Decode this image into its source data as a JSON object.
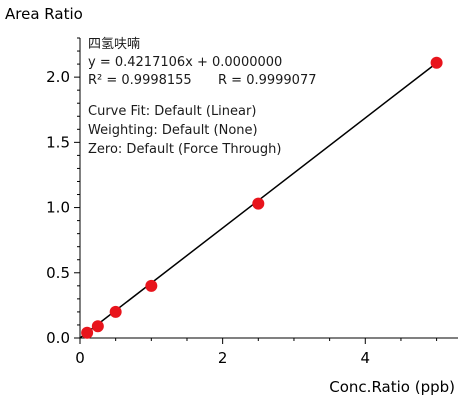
{
  "chart_data": {
    "type": "scatter",
    "title": "",
    "ylabel": "Area Ratio",
    "xlabel": "Conc.Ratio (ppb)",
    "xlim": [
      0,
      5.3
    ],
    "ylim": [
      0,
      2.3
    ],
    "x_ticks": [
      0,
      2,
      4
    ],
    "y_ticks": [
      0.0,
      0.5,
      1.0,
      1.5,
      2.0
    ],
    "grid": false,
    "points": [
      {
        "x": 0.1,
        "y": 0.04
      },
      {
        "x": 0.25,
        "y": 0.09
      },
      {
        "x": 0.5,
        "y": 0.2
      },
      {
        "x": 1.0,
        "y": 0.4
      },
      {
        "x": 2.5,
        "y": 1.03
      },
      {
        "x": 5.0,
        "y": 2.11
      }
    ],
    "fit_line": {
      "slope": 0.4217106,
      "intercept": 0.0,
      "x_range": [
        0.0,
        5.0
      ]
    },
    "annotations": {
      "compound": "四氢呋喃",
      "equation": "y = 0.4217106x + 0.0000000",
      "r_squared": "R² = 0.9998155",
      "r_value": "R = 0.9999077",
      "curve_fit": "Curve Fit: Default (Linear)",
      "weighting": "Weighting: Default (None)",
      "zero": "Zero: Default (Force Through)"
    },
    "colors": {
      "point": "#e8141c",
      "line": "#000000",
      "axis": "#000000"
    }
  }
}
